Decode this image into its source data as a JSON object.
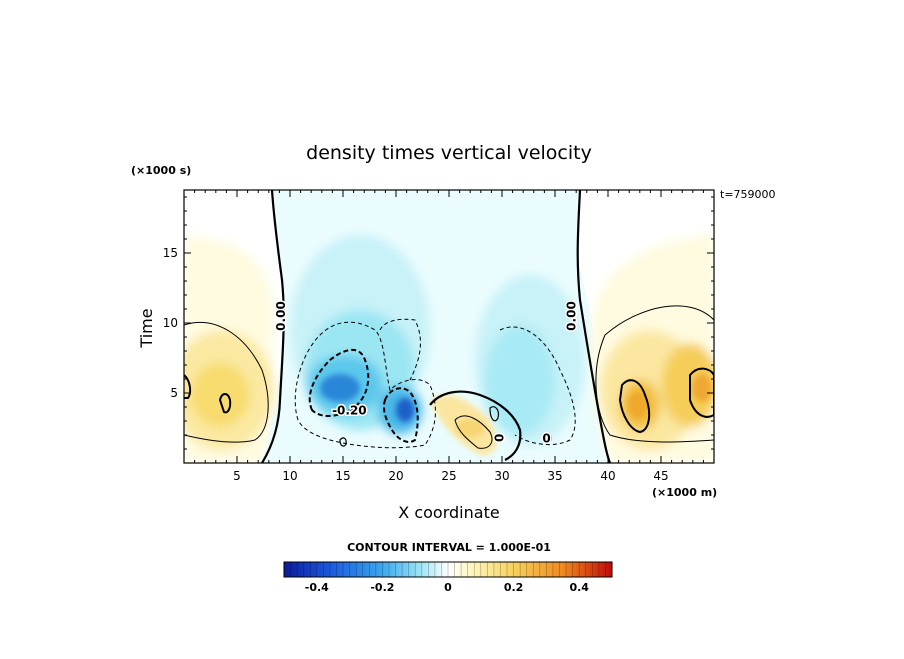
{
  "chart_data": {
    "type": "heatmap",
    "title": "density times vertical velocity",
    "xlabel": "X coordinate",
    "ylabel": "Time",
    "x_unit_label": "(×1000 m)",
    "y_unit_label": "(×1000 s)",
    "corner_label": "t=759000",
    "xlim": [
      0,
      50
    ],
    "ylim": [
      0,
      19.5
    ],
    "x_ticks": [
      {
        "v": 5,
        "label": "5"
      },
      {
        "v": 10,
        "label": "10"
      },
      {
        "v": 15,
        "label": "15"
      },
      {
        "v": 20,
        "label": "20"
      },
      {
        "v": 25,
        "label": "25"
      },
      {
        "v": 30,
        "label": "30"
      },
      {
        "v": 35,
        "label": "35"
      },
      {
        "v": 40,
        "label": "40"
      },
      {
        "v": 45,
        "label": "45"
      }
    ],
    "y_ticks": [
      {
        "v": 5,
        "label": "5"
      },
      {
        "v": 10,
        "label": "10"
      },
      {
        "v": 15,
        "label": "15"
      }
    ],
    "contour_interval_label": "CONTOUR INTERVAL = 1.000E-01",
    "contour_labels": [
      {
        "x": 9.2,
        "y": 10.5,
        "text": "0.00",
        "rotate": -90
      },
      {
        "x": 36.6,
        "y": 10.5,
        "text": "0.00",
        "rotate": -90
      },
      {
        "x": 15.6,
        "y": 3.7,
        "text": "-0.20",
        "rotate": 0
      },
      {
        "x": 29.8,
        "y": 1.8,
        "text": "0",
        "rotate": -90
      },
      {
        "x": 34.2,
        "y": 1.7,
        "text": "0",
        "rotate": 0
      }
    ],
    "colorbar": {
      "min": -0.5,
      "max": 0.5,
      "ticks": [
        {
          "v": -0.4,
          "label": "-0.4"
        },
        {
          "v": -0.2,
          "label": "-0.2"
        },
        {
          "v": 0,
          "label": "0"
        },
        {
          "v": 0.2,
          "label": "0.2"
        },
        {
          "v": 0.4,
          "label": "0.4"
        }
      ]
    },
    "grid": false,
    "colors": {
      "neg_strong": "#0a1fa8",
      "neg_mid": "#2f9fe8",
      "neg_weak": "#bff0f8",
      "zero": "#ffffff",
      "pos_weak": "#fff3b0",
      "pos_mid": "#f5c84a",
      "pos_strong": "#d01010"
    }
  }
}
